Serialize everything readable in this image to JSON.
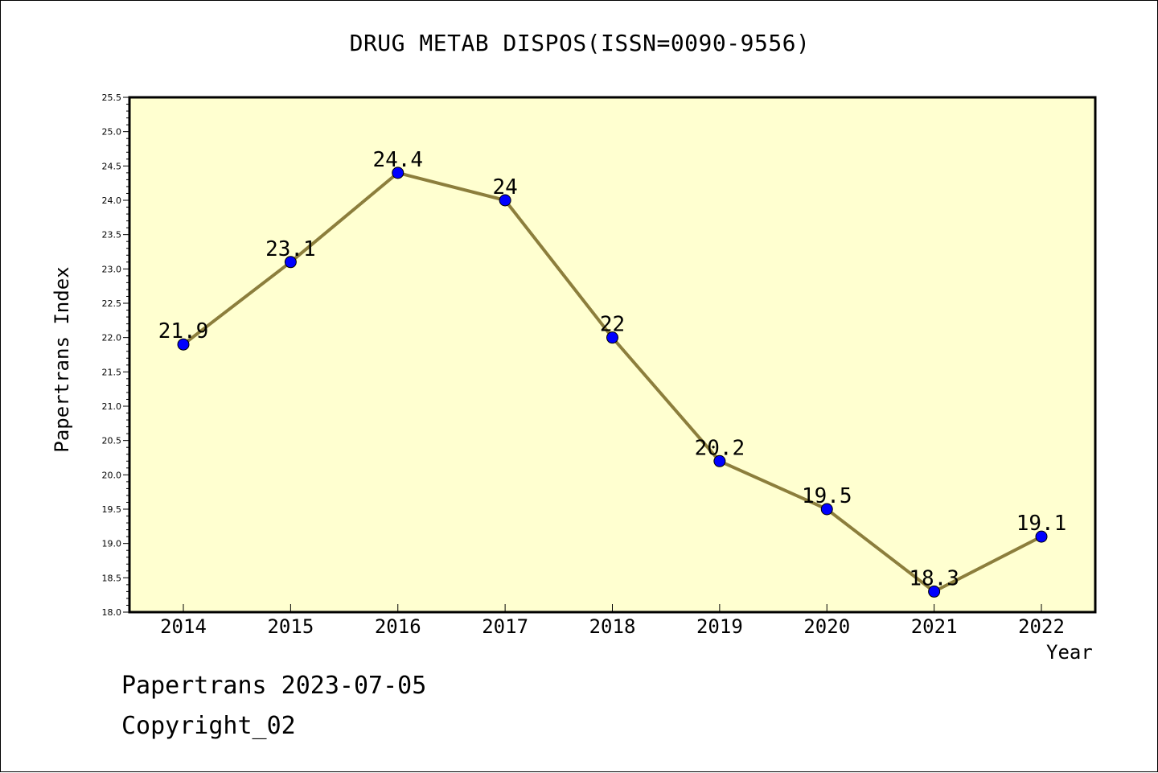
{
  "chart_data": {
    "type": "line",
    "title": "DRUG METAB DISPOS(ISSN=0090-9556)",
    "xlabel": "Year",
    "ylabel": "Papertrans Index",
    "categories": [
      "2014",
      "2015",
      "2016",
      "2017",
      "2018",
      "2019",
      "2020",
      "2021",
      "2022"
    ],
    "series": [
      {
        "values": [
          21.9,
          23.1,
          24.4,
          24.0,
          22.0,
          20.2,
          19.5,
          18.3,
          19.1
        ]
      }
    ],
    "data_labels": [
      "21.9",
      "23.1",
      "24.4",
      "24",
      "22",
      "20.2",
      "19.5",
      "18.3",
      "19.1"
    ],
    "ylim": [
      18.0,
      25.5
    ],
    "yticks": [
      "18.0",
      "18.5",
      "19.0",
      "19.5",
      "20.0",
      "20.5",
      "21.0",
      "21.5",
      "22.0",
      "22.5",
      "23.0",
      "23.5",
      "24.0",
      "24.5",
      "25.0",
      "25.5"
    ],
    "grid": false,
    "colors": {
      "plot_background": "#ffffd0",
      "line": "#8c7e3c",
      "marker": "#0000ff"
    }
  },
  "footer": {
    "line1": "Papertrans 2023-07-05",
    "line2": "Copyright_02"
  }
}
